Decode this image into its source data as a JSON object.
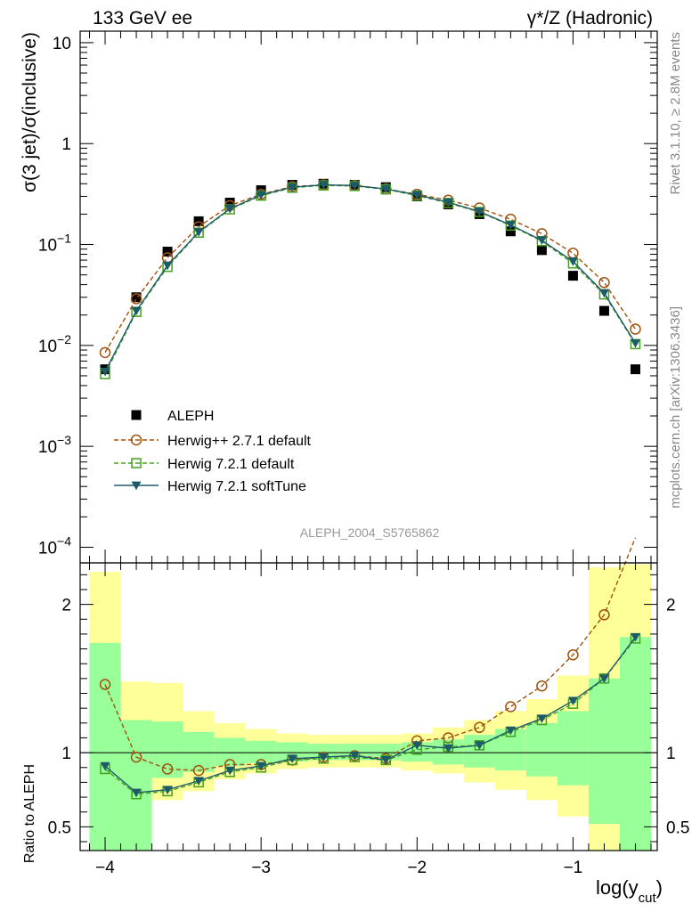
{
  "header": {
    "left": "133 GeV ee",
    "right": "γ*/Z (Hadronic)"
  },
  "side_text": {
    "rivet": "Rivet 3.1.10, ≥ 2.8M events",
    "mcplots": "mcplots.cern.ch [arXiv:1306.3436]"
  },
  "analysis_label": "ALEPH_2004_S5765862",
  "colors": {
    "aleph": "#000000",
    "herwigpp": "#a0520e",
    "herwig_default": "#44a020",
    "herwig_softtune": "#1d5b6b",
    "band_outer": "#ffff99",
    "band_inner": "#99ff99"
  },
  "chart_data": [
    {
      "type": "line",
      "title": "",
      "ylabel": "σ(3 jet)/σ(inclusive)",
      "xlabel": "",
      "yscale": "log",
      "ylim": [
        7e-05,
        13
      ],
      "xlim": [
        -4.16,
        -0.46
      ],
      "yticks": [
        {
          "value": 10,
          "label": "10"
        },
        {
          "value": 1,
          "label": "1"
        },
        {
          "value": 0.1,
          "label": "10",
          "exp": "−1"
        },
        {
          "value": 0.01,
          "label": "10",
          "exp": "−2"
        },
        {
          "value": 0.001,
          "label": "10",
          "exp": "−3"
        },
        {
          "value": 0.0001,
          "label": "10",
          "exp": "−4"
        }
      ],
      "legend_position": "center-left",
      "series": [
        {
          "name": "ALEPH",
          "marker": "filled-square",
          "x": [
            -4.0,
            -3.8,
            -3.6,
            -3.4,
            -3.2,
            -3.0,
            -2.8,
            -2.6,
            -2.4,
            -2.2,
            -2.0,
            -1.8,
            -1.6,
            -1.4,
            -1.2,
            -1.0,
            -0.8,
            -0.6
          ],
          "y": [
            0.0058,
            0.03,
            0.085,
            0.17,
            0.26,
            0.345,
            0.39,
            0.4,
            0.39,
            0.37,
            0.3,
            0.25,
            0.2,
            0.135,
            0.088,
            0.049,
            0.022,
            0.0058
          ]
        },
        {
          "name": "Herwig++ 2.7.1 default",
          "marker": "open-circle",
          "style": "dashed",
          "x": [
            -4.0,
            -3.8,
            -3.6,
            -3.4,
            -3.2,
            -3.0,
            -2.8,
            -2.6,
            -2.4,
            -2.2,
            -2.0,
            -1.8,
            -1.6,
            -1.4,
            -1.2,
            -1.0,
            -0.8,
            -0.6
          ],
          "y": [
            0.0085,
            0.029,
            0.074,
            0.15,
            0.243,
            0.315,
            0.375,
            0.39,
            0.385,
            0.355,
            0.315,
            0.275,
            0.23,
            0.178,
            0.128,
            0.082,
            0.042,
            0.0145
          ]
        },
        {
          "name": "Herwig 7.2.1 default",
          "marker": "open-square",
          "style": "dashed",
          "x": [
            -4.0,
            -3.8,
            -3.6,
            -3.4,
            -3.2,
            -3.0,
            -2.8,
            -2.6,
            -2.4,
            -2.2,
            -2.0,
            -1.8,
            -1.6,
            -1.4,
            -1.2,
            -1.0,
            -0.8,
            -0.6
          ],
          "y": [
            0.0052,
            0.0215,
            0.06,
            0.131,
            0.223,
            0.305,
            0.365,
            0.385,
            0.38,
            0.352,
            0.305,
            0.258,
            0.21,
            0.154,
            0.108,
            0.065,
            0.032,
            0.0103
          ]
        },
        {
          "name": "Herwig 7.2.1 softTune",
          "marker": "filled-triangle-down",
          "style": "solid",
          "x": [
            -4.0,
            -3.8,
            -3.6,
            -3.4,
            -3.2,
            -3.0,
            -2.8,
            -2.6,
            -2.4,
            -2.2,
            -2.0,
            -1.8,
            -1.6,
            -1.4,
            -1.2,
            -1.0,
            -0.8,
            -0.6
          ],
          "y": [
            0.0055,
            0.022,
            0.062,
            0.133,
            0.226,
            0.31,
            0.37,
            0.39,
            0.383,
            0.355,
            0.31,
            0.262,
            0.212,
            0.156,
            0.11,
            0.068,
            0.033,
            0.0105
          ]
        }
      ]
    },
    {
      "type": "line",
      "title": "",
      "ylabel": "Ratio to ALEPH",
      "xlabel": "log(y",
      "xlabel_sub": "cut",
      "xlabel_end": ")",
      "xlim": [
        -4.16,
        -0.46
      ],
      "ylim": [
        0.34,
        2.28
      ],
      "xticks": [
        {
          "value": -4,
          "label": "−4"
        },
        {
          "value": -3,
          "label": "−3"
        },
        {
          "value": -2,
          "label": "−2"
        },
        {
          "value": -1,
          "label": "−1"
        }
      ],
      "yticks": [
        {
          "value": 2,
          "label": "2"
        },
        {
          "value": 1,
          "label": "1"
        },
        {
          "value": 0.5,
          "label": "0.5"
        }
      ],
      "bands": {
        "x_edges": [
          -4.1,
          -3.9,
          -3.7,
          -3.5,
          -3.3,
          -3.1,
          -2.9,
          -2.7,
          -2.5,
          -2.3,
          -2.1,
          -1.9,
          -1.7,
          -1.5,
          -1.3,
          -1.1,
          -0.9,
          -0.7,
          -0.5
        ],
        "outer_low": [
          0.0,
          0.0,
          0.68,
          0.74,
          0.82,
          0.86,
          0.89,
          0.9,
          0.9,
          0.9,
          0.88,
          0.86,
          0.8,
          0.75,
          0.68,
          0.57,
          0.0,
          0.0
        ],
        "outer_high": [
          2.22,
          1.48,
          1.47,
          1.28,
          1.2,
          1.16,
          1.13,
          1.12,
          1.12,
          1.12,
          1.13,
          1.17,
          1.22,
          1.28,
          1.36,
          1.52,
          2.25,
          2.27
        ],
        "inner_low": [
          0.0,
          0.0,
          0.83,
          0.87,
          0.91,
          0.93,
          0.94,
          0.95,
          0.95,
          0.95,
          0.94,
          0.92,
          0.9,
          0.88,
          0.84,
          0.78,
          0.52,
          0.0
        ],
        "inner_high": [
          1.74,
          1.22,
          1.21,
          1.14,
          1.1,
          1.08,
          1.07,
          1.06,
          1.06,
          1.06,
          1.07,
          1.09,
          1.12,
          1.16,
          1.2,
          1.28,
          1.5,
          1.78
        ]
      },
      "series": [
        {
          "name": "Herwig++ 2.7.1 default",
          "x": [
            -4.0,
            -3.8,
            -3.6,
            -3.4,
            -3.2,
            -3.0,
            -2.8,
            -2.6,
            -2.4,
            -2.2,
            -2.0,
            -1.8,
            -1.6,
            -1.4,
            -1.2,
            -1.0,
            -0.8,
            -0.6
          ],
          "y": [
            1.46,
            0.97,
            0.89,
            0.88,
            0.92,
            0.92,
            0.95,
            0.97,
            0.98,
            0.96,
            1.08,
            1.1,
            1.17,
            1.31,
            1.45,
            1.66,
            1.93,
            2.45
          ]
        },
        {
          "name": "Herwig 7.2.1 default",
          "x": [
            -4.0,
            -3.8,
            -3.6,
            -3.4,
            -3.2,
            -3.0,
            -2.8,
            -2.6,
            -2.4,
            -2.2,
            -2.0,
            -1.8,
            -1.6,
            -1.4,
            -1.2,
            -1.0,
            -0.8,
            -0.6
          ],
          "y": [
            0.89,
            0.72,
            0.74,
            0.8,
            0.87,
            0.9,
            0.95,
            0.96,
            0.97,
            0.95,
            1.02,
            1.04,
            1.05,
            1.14,
            1.22,
            1.33,
            1.5,
            1.77
          ]
        },
        {
          "name": "Herwig 7.2.1 softTune",
          "x": [
            -4.0,
            -3.8,
            -3.6,
            -3.4,
            -3.2,
            -3.0,
            -2.8,
            -2.6,
            -2.4,
            -2.2,
            -2.0,
            -1.8,
            -1.6,
            -1.4,
            -1.2,
            -1.0,
            -0.8,
            -0.6
          ],
          "y": [
            0.91,
            0.73,
            0.75,
            0.81,
            0.88,
            0.91,
            0.96,
            0.97,
            0.98,
            0.95,
            1.05,
            1.03,
            1.05,
            1.15,
            1.23,
            1.35,
            1.5,
            1.78
          ]
        }
      ]
    }
  ]
}
